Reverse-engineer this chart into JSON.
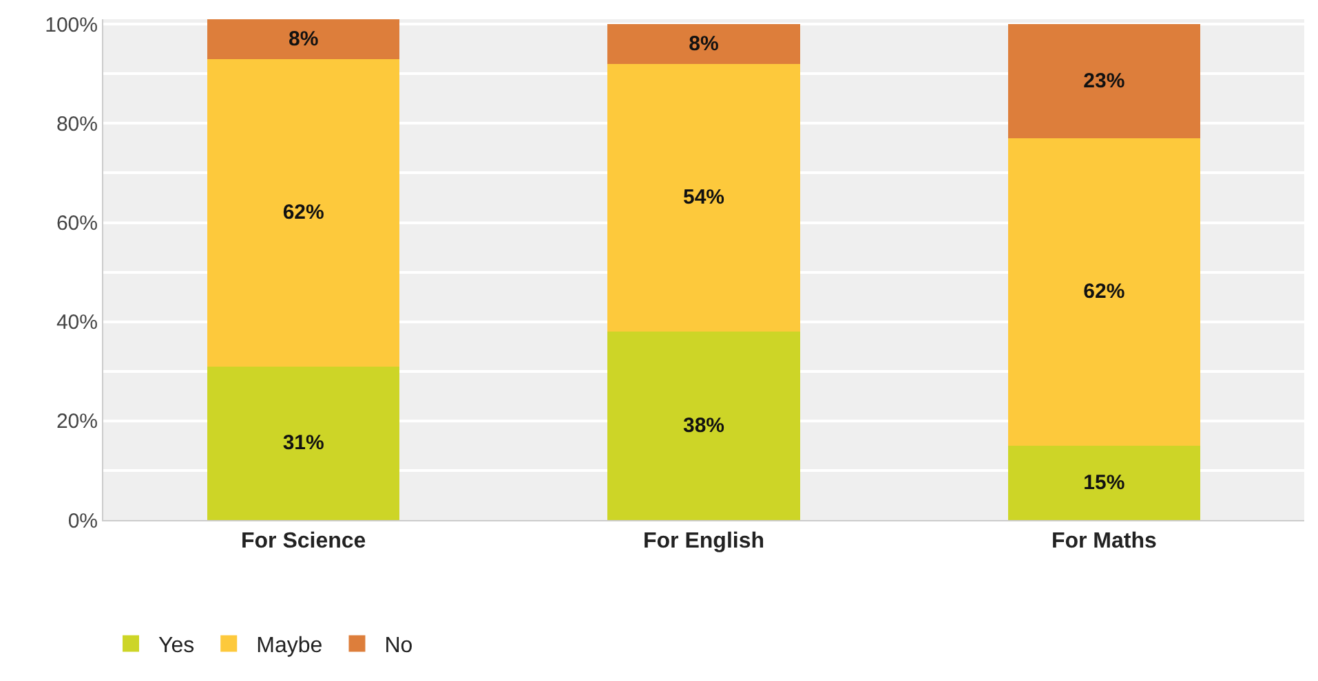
{
  "chart_data": {
    "type": "bar",
    "stacked": true,
    "categories": [
      "For Science",
      "For English",
      "For Maths"
    ],
    "series": [
      {
        "name": "Yes",
        "color": "#cdd527",
        "values": [
          31,
          38,
          15
        ],
        "value_labels": [
          "31%",
          "38%",
          "15%"
        ]
      },
      {
        "name": "Maybe",
        "color": "#fdc93c",
        "values": [
          62,
          54,
          62
        ],
        "value_labels": [
          "62%",
          "54%",
          "62%"
        ]
      },
      {
        "name": "No",
        "color": "#dd7e3b",
        "values": [
          8,
          8,
          23
        ],
        "value_labels": [
          "8%",
          "8%",
          "23%"
        ]
      }
    ],
    "ylim": [
      0,
      101
    ],
    "yticks": [
      {
        "value": 0,
        "label": "0%"
      },
      {
        "value": 10,
        "label": null
      },
      {
        "value": 20,
        "label": "20%"
      },
      {
        "value": 30,
        "label": null
      },
      {
        "value": 40,
        "label": "40%"
      },
      {
        "value": 50,
        "label": null
      },
      {
        "value": 60,
        "label": "60%"
      },
      {
        "value": 70,
        "label": null
      },
      {
        "value": 80,
        "label": "80%"
      },
      {
        "value": 90,
        "label": null
      },
      {
        "value": 100,
        "label": "100%"
      }
    ],
    "grid": "y",
    "legend": "bottom left"
  }
}
